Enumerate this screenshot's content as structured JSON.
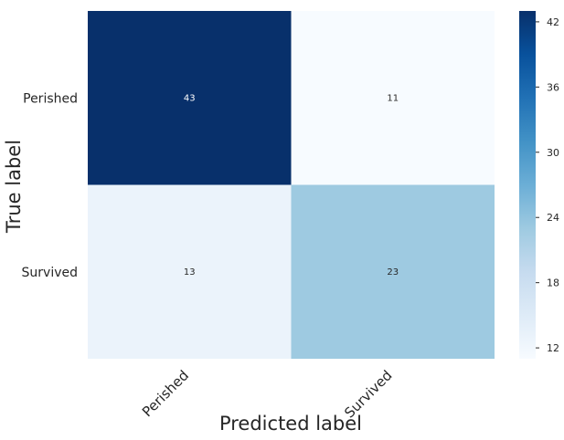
{
  "chart_data": {
    "type": "heatmap",
    "title": "",
    "xlabel": "Predicted label",
    "ylabel": "True label",
    "x_categories": [
      "Perished",
      "Survived"
    ],
    "y_categories": [
      "Perished",
      "Survived"
    ],
    "values": [
      [
        43,
        11
      ],
      [
        13,
        23
      ]
    ],
    "colormap": "Blues",
    "colorbar": {
      "ticks": [
        12,
        18,
        24,
        30,
        36,
        42
      ],
      "min": 11,
      "max": 43
    },
    "grid": false,
    "colors": {
      "cell_43": "#08306b",
      "cell_11": "#f7fbff",
      "cell_13": "#eaf3fb",
      "cell_23": "#9ecae1",
      "scale_low": "#f7fbff",
      "scale_high": "#08306b",
      "text": "#262626"
    }
  }
}
